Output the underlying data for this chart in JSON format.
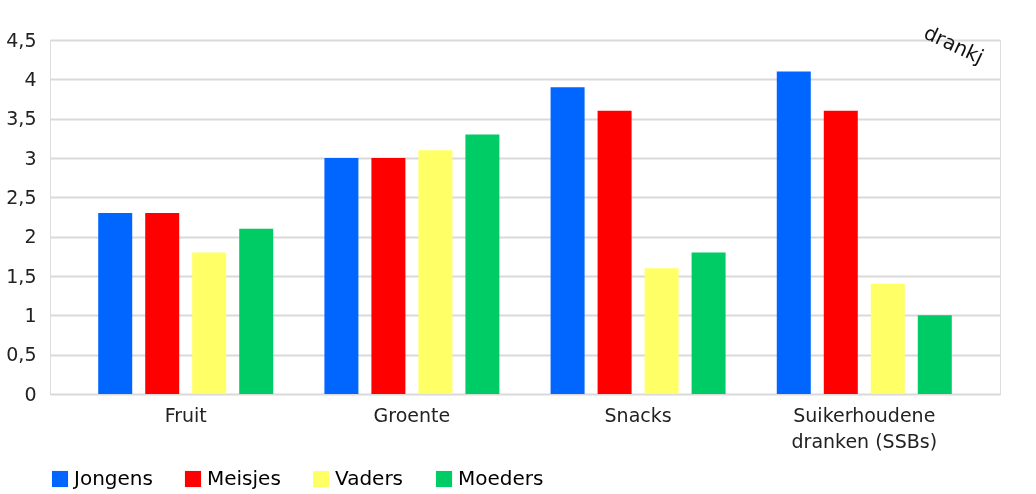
{
  "chart_data": {
    "type": "bar",
    "categories": [
      "Fruit",
      "Groente",
      "Snacks",
      "Suikerhoudene dranken (SSBs)"
    ],
    "series": [
      {
        "name": "Jongens",
        "color": "#0066ff",
        "values": [
          2.3,
          3.0,
          3.9,
          4.1
        ]
      },
      {
        "name": "Meisjes",
        "color": "#ff0000",
        "values": [
          2.3,
          3.0,
          3.6,
          3.6
        ]
      },
      {
        "name": "Vaders",
        "color": "#ffff66",
        "values": [
          1.8,
          3.1,
          1.6,
          1.4
        ]
      },
      {
        "name": "Moeders",
        "color": "#00cc66",
        "values": [
          2.1,
          3.3,
          1.8,
          1.0
        ]
      }
    ],
    "ylim": [
      0,
      4.5
    ],
    "yticks": [
      0,
      {
        "value": 0.5,
        "label": "0,5"
      },
      1,
      {
        "value": 1.5,
        "label": "1,5"
      },
      2,
      {
        "value": 2.5,
        "label": "2,5"
      },
      3,
      {
        "value": 3.5,
        "label": "3,5"
      },
      4,
      {
        "value": 4.5,
        "label": "4,5"
      }
    ],
    "grid": "y",
    "legend": "bottom",
    "annotations": [
      "drankj"
    ]
  }
}
